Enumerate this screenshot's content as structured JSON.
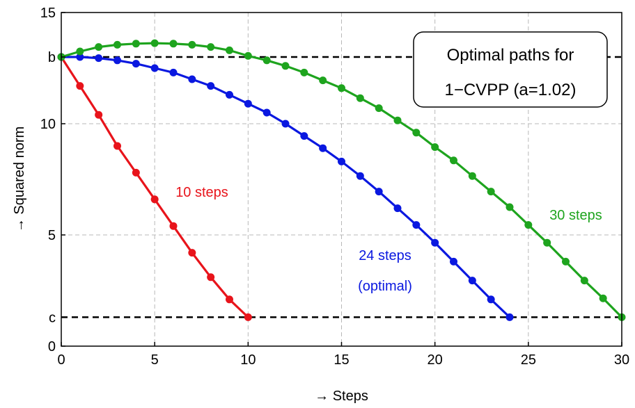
{
  "chart_data": {
    "type": "line",
    "xlabel": "→ Steps",
    "ylabel": "→ Squared norm",
    "xlim": [
      0,
      30
    ],
    "ylim": [
      0,
      15
    ],
    "xticks": [
      "0",
      "5",
      "10",
      "15",
      "20",
      "25",
      "30"
    ],
    "xtick_values": [
      0,
      5,
      10,
      15,
      20,
      25,
      30
    ],
    "yticks": [
      {
        "value": 0,
        "label": "0"
      },
      {
        "value": 1.3,
        "label": "c"
      },
      {
        "value": 5,
        "label": "5"
      },
      {
        "value": 10,
        "label": "10"
      },
      {
        "value": 13,
        "label": "b"
      },
      {
        "value": 15,
        "label": "15"
      }
    ],
    "grid": true,
    "reference_lines": [
      {
        "label": "b",
        "y": 13
      },
      {
        "label": "c",
        "y": 1.3
      }
    ],
    "annotation_box": {
      "lines": [
        "Optimal paths for",
        "1−CVPP (a=1.02)"
      ]
    },
    "series": [
      {
        "name": "10 steps",
        "label_lines": [
          "10 steps"
        ],
        "color": "#e8141b",
        "x": [
          0,
          1,
          2,
          3,
          4,
          5,
          6,
          7,
          8,
          9,
          10
        ],
        "y": [
          13.0,
          11.7,
          10.4,
          9.0,
          7.8,
          6.6,
          5.4,
          4.2,
          3.1,
          2.1,
          1.3
        ]
      },
      {
        "name": "24 steps (optimal)",
        "label_lines": [
          "24 steps",
          "(optimal)"
        ],
        "color": "#0a18e0",
        "x": [
          0,
          1,
          2,
          3,
          4,
          5,
          6,
          7,
          8,
          9,
          10,
          11,
          12,
          13,
          14,
          15,
          16,
          17,
          18,
          19,
          20,
          21,
          22,
          23,
          24
        ],
        "y": [
          13.0,
          13.0,
          12.95,
          12.85,
          12.7,
          12.5,
          12.3,
          12.0,
          11.7,
          11.3,
          10.9,
          10.5,
          10.0,
          9.45,
          8.9,
          8.3,
          7.65,
          6.95,
          6.2,
          5.45,
          4.65,
          3.8,
          2.95,
          2.1,
          1.3
        ]
      },
      {
        "name": "30 steps",
        "label_lines": [
          "30 steps"
        ],
        "color": "#1ea41e",
        "x": [
          0,
          1,
          2,
          3,
          4,
          5,
          6,
          7,
          8,
          9,
          10,
          11,
          12,
          13,
          14,
          15,
          16,
          17,
          18,
          19,
          20,
          21,
          22,
          23,
          24,
          25,
          26,
          27,
          28,
          29,
          30
        ],
        "y": [
          13.0,
          13.25,
          13.45,
          13.55,
          13.6,
          13.62,
          13.6,
          13.55,
          13.45,
          13.3,
          13.05,
          12.85,
          12.6,
          12.3,
          11.95,
          11.6,
          11.15,
          10.7,
          10.15,
          9.6,
          8.95,
          8.35,
          7.65,
          6.95,
          6.25,
          5.45,
          4.65,
          3.8,
          2.95,
          2.15,
          1.3
        ]
      }
    ]
  }
}
